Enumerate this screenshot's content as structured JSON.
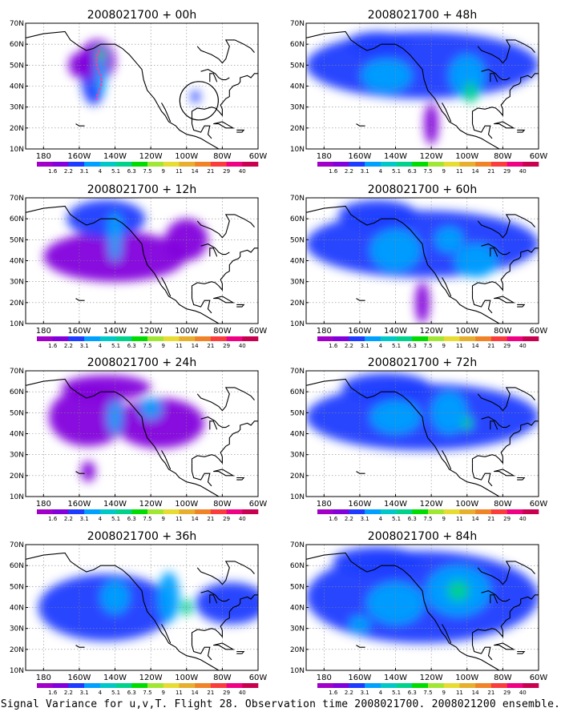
{
  "footer": "Signal Variance for u,v,T. Flight 28. Observation time 2008021700. 2008021200 ensemble.",
  "axes": {
    "x_ticks": [
      "180",
      "160W",
      "140W",
      "120W",
      "100W",
      "80W",
      "60W"
    ],
    "y_ticks": [
      "10N",
      "20N",
      "30N",
      "40N",
      "50N",
      "60N",
      "70N"
    ],
    "lon_range": [
      -190,
      -60
    ],
    "lat_range": [
      10,
      70
    ],
    "grid": "dotted"
  },
  "colorbar": {
    "labels": [
      "1.6",
      "2.2",
      "3.1",
      "4",
      "5.1",
      "6.3",
      "7.5",
      "9",
      "11",
      "14",
      "21",
      "29",
      "40"
    ],
    "colors": [
      "#a000c8",
      "#8200dc",
      "#1e3cff",
      "#00a0ff",
      "#00c8c8",
      "#00d28c",
      "#00dc00",
      "#a0e632",
      "#e6dc32",
      "#e6af2d",
      "#f08228",
      "#fa3c3c",
      "#f00082",
      "#c80050"
    ]
  },
  "chart_data": [
    {
      "type": "heatmap",
      "title": "2008021700 + 00h",
      "lead_hours": 0,
      "panel": "left-1",
      "blobs": [
        {
          "lon": -152,
          "lat": 45,
          "rx": 7,
          "ry": 14,
          "v": 1.8
        },
        {
          "lon": -150,
          "lat": 52,
          "rx": 10,
          "ry": 10,
          "v": 1.4
        },
        {
          "lon": -160,
          "lat": 50,
          "rx": 6,
          "ry": 6,
          "v": 1.1
        },
        {
          "lon": -148,
          "lat": 45,
          "rx": 3,
          "ry": 9,
          "v": 3.3
        },
        {
          "lon": -148,
          "lat": 55,
          "rx": 2.5,
          "ry": 3,
          "v": 4.6
        },
        {
          "lon": -95,
          "lat": 35,
          "rx": 2.5,
          "ry": 3,
          "v": 1.5
        }
      ],
      "annotations": [
        "dotted flight track",
        "circled region"
      ]
    },
    {
      "type": "heatmap",
      "title": "2008021700 + 12h",
      "lead_hours": 12,
      "panel": "left-2",
      "blobs": [
        {
          "lon": -140,
          "lat": 42,
          "rx": 40,
          "ry": 12,
          "v": 1.3
        },
        {
          "lon": -145,
          "lat": 60,
          "rx": 22,
          "ry": 9,
          "v": 1.5
        },
        {
          "lon": -140,
          "lat": 55,
          "rx": 4,
          "ry": 8,
          "v": 3.0
        },
        {
          "lon": -140,
          "lat": 46,
          "rx": 3,
          "ry": 6,
          "v": 2.7
        },
        {
          "lon": -100,
          "lat": 50,
          "rx": 12,
          "ry": 10,
          "v": 1.0
        }
      ]
    },
    {
      "type": "heatmap",
      "title": "2008021700 + 24h",
      "lead_hours": 24,
      "panel": "left-3",
      "blobs": [
        {
          "lon": -155,
          "lat": 48,
          "rx": 22,
          "ry": 14,
          "v": 1.4
        },
        {
          "lon": -115,
          "lat": 45,
          "rx": 25,
          "ry": 12,
          "v": 1.4
        },
        {
          "lon": -145,
          "lat": 62,
          "rx": 25,
          "ry": 6,
          "v": 1.4
        },
        {
          "lon": -140,
          "lat": 48,
          "rx": 4,
          "ry": 8,
          "v": 3.0
        },
        {
          "lon": -120,
          "lat": 52,
          "rx": 6,
          "ry": 5,
          "v": 3.0
        },
        {
          "lon": -155,
          "lat": 22,
          "rx": 4,
          "ry": 5,
          "v": 1.0
        }
      ]
    },
    {
      "type": "heatmap",
      "title": "2008021700 + 36h",
      "lead_hours": 36,
      "panel": "left-4",
      "blobs": [
        {
          "lon": -145,
          "lat": 40,
          "rx": 38,
          "ry": 16,
          "v": 1.5
        },
        {
          "lon": -75,
          "lat": 42,
          "rx": 20,
          "ry": 10,
          "v": 1.5
        },
        {
          "lon": -140,
          "lat": 45,
          "rx": 8,
          "ry": 8,
          "v": 3.0
        },
        {
          "lon": -110,
          "lat": 45,
          "rx": 6,
          "ry": 12,
          "v": 3.0
        },
        {
          "lon": -100,
          "lat": 40,
          "rx": 3,
          "ry": 4,
          "v": 4.6
        }
      ]
    },
    {
      "type": "heatmap",
      "title": "2008021700 + 48h",
      "lead_hours": 48,
      "panel": "right-1",
      "blobs": [
        {
          "lon": -125,
          "lat": 50,
          "rx": 65,
          "ry": 16,
          "v": 1.6
        },
        {
          "lon": -150,
          "lat": 60,
          "rx": 18,
          "ry": 6,
          "v": 1.5
        },
        {
          "lon": -145,
          "lat": 45,
          "rx": 14,
          "ry": 8,
          "v": 3.0
        },
        {
          "lon": -100,
          "lat": 45,
          "rx": 10,
          "ry": 10,
          "v": 3.0
        },
        {
          "lon": -98,
          "lat": 37,
          "rx": 4,
          "ry": 5,
          "v": 4.6
        },
        {
          "lon": -120,
          "lat": 22,
          "rx": 4,
          "ry": 10,
          "v": 1.0
        }
      ]
    },
    {
      "type": "heatmap",
      "title": "2008021700 + 60h",
      "lead_hours": 60,
      "panel": "right-2",
      "blobs": [
        {
          "lon": -125,
          "lat": 48,
          "rx": 65,
          "ry": 16,
          "v": 1.7
        },
        {
          "lon": -150,
          "lat": 62,
          "rx": 22,
          "ry": 7,
          "v": 1.5
        },
        {
          "lon": -140,
          "lat": 45,
          "rx": 14,
          "ry": 10,
          "v": 3.0
        },
        {
          "lon": -110,
          "lat": 50,
          "rx": 8,
          "ry": 6,
          "v": 3.0
        },
        {
          "lon": -95,
          "lat": 40,
          "rx": 12,
          "ry": 8,
          "v": 3.0
        },
        {
          "lon": -125,
          "lat": 20,
          "rx": 4,
          "ry": 10,
          "v": 1.0
        }
      ]
    },
    {
      "type": "heatmap",
      "title": "2008021700 + 72h",
      "lead_hours": 72,
      "panel": "right-3",
      "blobs": [
        {
          "lon": -125,
          "lat": 48,
          "rx": 65,
          "ry": 16,
          "v": 1.7
        },
        {
          "lon": -145,
          "lat": 62,
          "rx": 25,
          "ry": 7,
          "v": 1.5
        },
        {
          "lon": -140,
          "lat": 48,
          "rx": 14,
          "ry": 8,
          "v": 3.0
        },
        {
          "lon": -110,
          "lat": 50,
          "rx": 10,
          "ry": 10,
          "v": 3.0
        },
        {
          "lon": -100,
          "lat": 45,
          "rx": 3,
          "ry": 3,
          "v": 4.6
        }
      ]
    },
    {
      "type": "heatmap",
      "title": "2008021700 + 84h",
      "lead_hours": 84,
      "panel": "right-4",
      "blobs": [
        {
          "lon": -125,
          "lat": 45,
          "rx": 65,
          "ry": 22,
          "v": 1.8
        },
        {
          "lon": -150,
          "lat": 62,
          "rx": 25,
          "ry": 7,
          "v": 1.5
        },
        {
          "lon": -140,
          "lat": 42,
          "rx": 16,
          "ry": 10,
          "v": 3.0
        },
        {
          "lon": -105,
          "lat": 48,
          "rx": 18,
          "ry": 12,
          "v": 3.2
        },
        {
          "lon": -105,
          "lat": 48,
          "rx": 6,
          "ry": 5,
          "v": 5.0
        },
        {
          "lon": -160,
          "lat": 32,
          "rx": 6,
          "ry": 4,
          "v": 2.6
        }
      ]
    }
  ]
}
